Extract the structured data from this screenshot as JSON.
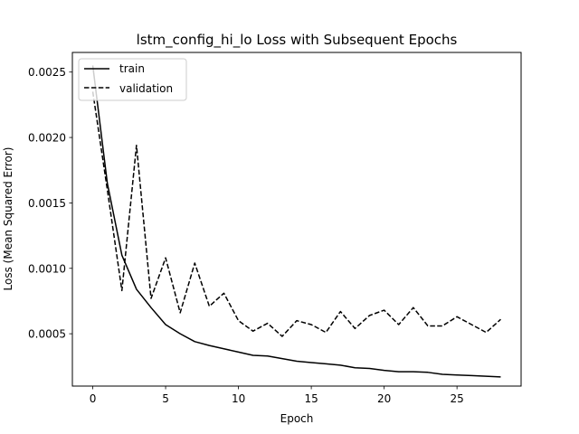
{
  "chart_data": {
    "type": "line",
    "title": "lstm_config_hi_lo Loss with Subsequent Epochs",
    "xlabel": "Epoch",
    "ylabel": "Loss (Mean Squared Error)",
    "xlim": [
      -1.4,
      29.4
    ],
    "ylim": [
      0.0001,
      0.00265
    ],
    "x_ticks": [
      0,
      5,
      10,
      15,
      20,
      25
    ],
    "y_ticks": [
      0.0005,
      0.001,
      0.0015,
      0.002,
      0.0025
    ],
    "y_tick_labels": [
      "0.0005",
      "0.0010",
      "0.0015",
      "0.0020",
      "0.0025"
    ],
    "grid": false,
    "legend_position": "upper-left",
    "x": [
      0,
      1,
      2,
      3,
      4,
      5,
      6,
      7,
      8,
      9,
      10,
      11,
      12,
      13,
      14,
      15,
      16,
      17,
      18,
      19,
      20,
      21,
      22,
      23,
      24,
      25,
      26,
      27,
      28
    ],
    "series": [
      {
        "name": "train",
        "style": "solid",
        "color": "#000000",
        "values": [
          0.00255,
          0.00165,
          0.0011,
          0.00084,
          0.0007,
          0.00057,
          0.0005,
          0.00044,
          0.00041,
          0.000385,
          0.00036,
          0.000335,
          0.00033,
          0.00031,
          0.00029,
          0.00028,
          0.00027,
          0.00026,
          0.00024,
          0.000235,
          0.00022,
          0.00021,
          0.00021,
          0.000205,
          0.00019,
          0.000185,
          0.00018,
          0.000175,
          0.00017
        ]
      },
      {
        "name": "validation",
        "style": "dashed",
        "color": "#000000",
        "values": [
          0.00235,
          0.0016,
          0.00083,
          0.00194,
          0.00077,
          0.00108,
          0.00066,
          0.00104,
          0.00071,
          0.00081,
          0.0006,
          0.00052,
          0.00058,
          0.00048,
          0.0006,
          0.00057,
          0.00051,
          0.00067,
          0.00054,
          0.00064,
          0.00068,
          0.00057,
          0.0007,
          0.00056,
          0.00056,
          0.00063,
          0.00057,
          0.00051,
          0.00061
        ]
      }
    ]
  }
}
